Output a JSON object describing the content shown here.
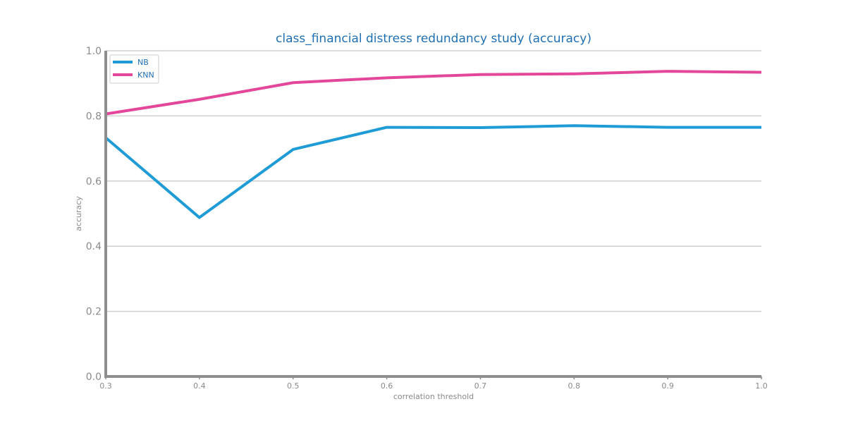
{
  "chart_data": {
    "type": "line",
    "title": "class_financial distress redundancy study (accuracy)",
    "xlabel": "correlation threshold",
    "ylabel": "accuracy",
    "x": [
      0.3,
      0.4,
      0.5,
      0.6,
      0.7,
      0.8,
      0.9,
      1.0
    ],
    "x_tick_labels": [
      "0.3",
      "0.4",
      "0.5",
      "0.6",
      "0.7",
      "0.8",
      "0.9",
      "1.0"
    ],
    "y_tick_labels": [
      "0.0",
      "0.2",
      "0.4",
      "0.6",
      "0.8",
      "1.0"
    ],
    "xlim": [
      0.3,
      1.0
    ],
    "ylim": [
      0.0,
      1.0
    ],
    "grid": "horizontal",
    "legend_position": "top-left",
    "series": [
      {
        "name": "NB",
        "color": "#1f9bd5",
        "values": [
          0.733,
          0.488,
          0.697,
          0.765,
          0.764,
          0.77,
          0.765,
          0.765
        ]
      },
      {
        "name": "KNN",
        "color": "#e3479a",
        "values": [
          0.806,
          0.851,
          0.902,
          0.917,
          0.927,
          0.929,
          0.937,
          0.934
        ]
      }
    ]
  }
}
